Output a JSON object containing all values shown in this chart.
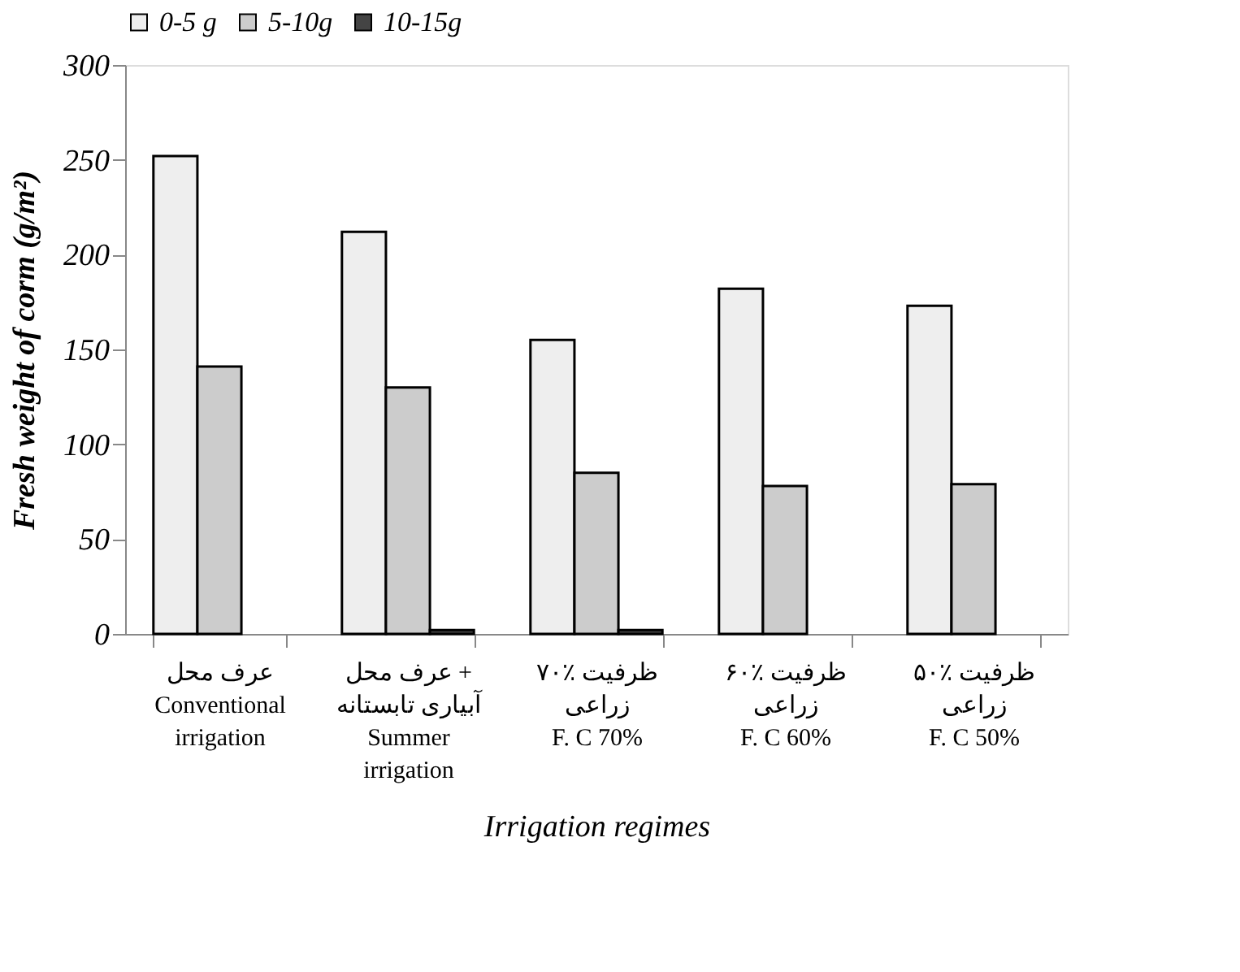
{
  "chart_data": {
    "type": "bar",
    "xlabel": "Irrigation regimes",
    "ylabel": "Fresh weight of corm (g/m²)",
    "categories": [
      "عرف محل\nConventional\nirrigation",
      "عرف محل +\nآبیاری تابستانه\nSummer\nirrigation",
      "۷۰٪ ظرفیت\nزراعی\nF. C 70%",
      "۶۰٪ ظرفیت\nزراعی\nF. C 60%",
      "۵۰٪ ظرفیت\nزراعی\nF. C 50%"
    ],
    "series": [
      {
        "name": "0-5 g",
        "color": "#eeeeee",
        "values": [
          252,
          212,
          155,
          182,
          173
        ]
      },
      {
        "name": "5-10g",
        "color": "#cccccc",
        "values": [
          141,
          130,
          85,
          78,
          79
        ]
      },
      {
        "name": "10-15g",
        "color": "#444444",
        "values": [
          null,
          2,
          2,
          null,
          null
        ]
      }
    ],
    "ylim": [
      0,
      300
    ],
    "yticks": [
      0,
      50,
      100,
      150,
      200,
      250,
      300
    ],
    "grid": false,
    "legend": "top"
  }
}
